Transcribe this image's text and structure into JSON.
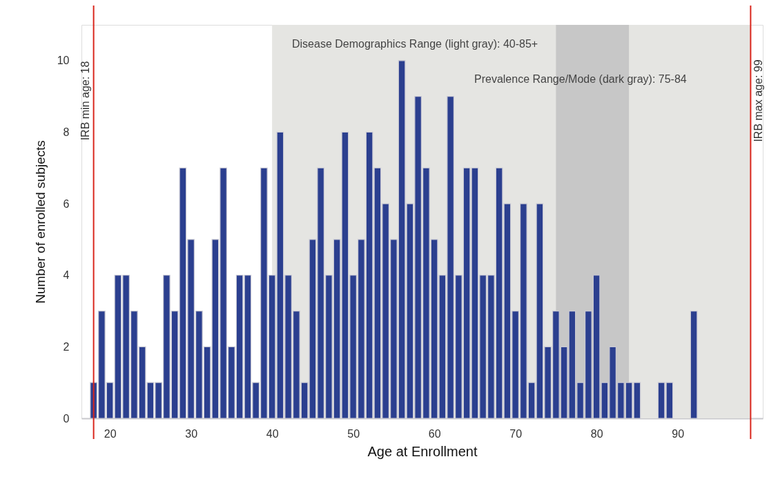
{
  "chart_data": {
    "type": "bar",
    "xlabel": "Age at Enrollment",
    "ylabel": "Number of enrolled subjects",
    "x": [
      18,
      19,
      20,
      21,
      22,
      23,
      24,
      25,
      26,
      27,
      28,
      29,
      30,
      31,
      32,
      33,
      34,
      35,
      36,
      37,
      38,
      39,
      40,
      41,
      42,
      43,
      44,
      45,
      46,
      47,
      48,
      49,
      50,
      51,
      52,
      53,
      54,
      55,
      56,
      57,
      58,
      59,
      60,
      61,
      62,
      63,
      64,
      65,
      66,
      67,
      68,
      69,
      70,
      71,
      72,
      73,
      74,
      75,
      76,
      77,
      78,
      79,
      80,
      81,
      82,
      83,
      84,
      85,
      86,
      87,
      88,
      89,
      90,
      91,
      92
    ],
    "series": [
      {
        "color": "#2b3f8f",
        "values": [
          1,
          3,
          1,
          4,
          4,
          3,
          2,
          1,
          1,
          4,
          3,
          7,
          5,
          3,
          2,
          5,
          7,
          2,
          4,
          4,
          1,
          7,
          4,
          8,
          4,
          3,
          1,
          5,
          7,
          4,
          5,
          8,
          4,
          5,
          8,
          7,
          6,
          5,
          10,
          6,
          9,
          7,
          5,
          4,
          9,
          4,
          7,
          7,
          4,
          4,
          7,
          6,
          3,
          6,
          1,
          6,
          2,
          3,
          2,
          3,
          1,
          3,
          4,
          1,
          2,
          1,
          1,
          1,
          null,
          null,
          1,
          1,
          null,
          null,
          3
        ]
      }
    ],
    "xlim": [
      16.5,
      100.5
    ],
    "xticks": [
      20,
      30,
      40,
      50,
      60,
      70,
      80,
      90
    ],
    "ylim": [
      0,
      11
    ],
    "yticks": [
      0,
      2,
      4,
      6,
      8,
      10
    ],
    "bands": [
      {
        "axis": "x",
        "from": 40,
        "to": 99,
        "label": "Disease Demographics Range (light gray): 40-85+",
        "color": "#e5e5e2"
      },
      {
        "axis": "x",
        "from": 75,
        "to": 84,
        "label": "Prevalence Range/Mode (dark gray): 75-84",
        "color": "#c7c7c7"
      }
    ],
    "ref_lines": [
      {
        "axis": "x",
        "value": 18,
        "label": "IRB min age: 18",
        "color": "#d9261c"
      },
      {
        "axis": "x",
        "value": 99,
        "label": "IRB max age: 99",
        "color": "#d9261c"
      }
    ],
    "grid": false
  }
}
